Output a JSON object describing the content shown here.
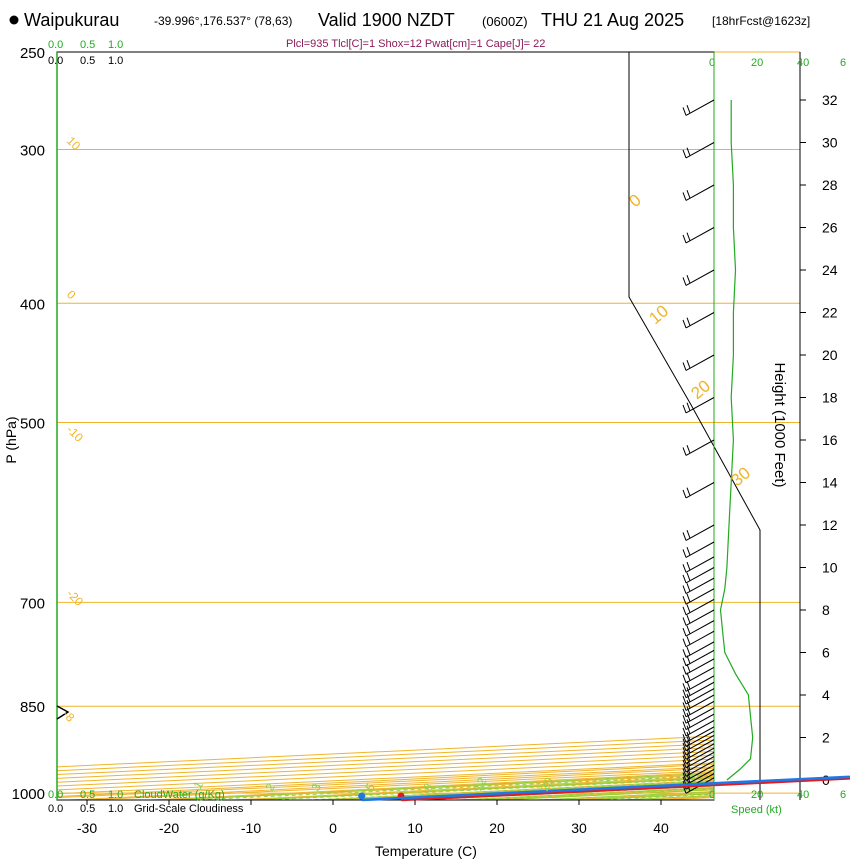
{
  "header": {
    "station": "Waipukurau",
    "coords": "-39.996°,176.537° (78,63)",
    "valid": "Valid 1900 NZDT",
    "utc": "(0600Z)",
    "date": "THU 21 Aug 2025",
    "forecast": "[18hrFcst@1623z]",
    "indices": "Plcl=935 Tlcl[C]=1 Shox=12 Pwat[cm]=1 Cape[J]= 22"
  },
  "colors": {
    "temp": "#e41a1c",
    "dew": "#1f77e8",
    "isotherm": "#f0b429",
    "adiabat": "#9acd32",
    "mixing": "#8fd14f",
    "green_label": "#22aa22",
    "parcel": "#8b1a5a"
  },
  "chart_data": {
    "type": "line",
    "title": "Skew-T log-P sounding",
    "xlabel": "Temperature (C)",
    "ylabel": "P (hPa)",
    "y2label": "Height (1000 Feet)",
    "x_ticks": [
      "-30",
      "-20",
      "-10",
      "0",
      "10",
      "20",
      "30",
      "40"
    ],
    "p_ticks": [
      "250",
      "300",
      "400",
      "500",
      "700",
      "850",
      "1000"
    ],
    "height_ticks": [
      "32",
      "30",
      "28",
      "26",
      "24",
      "22",
      "20",
      "18",
      "16",
      "14",
      "12",
      "10",
      "8",
      "6",
      "4",
      "2",
      "0"
    ],
    "isotherm_labels": [
      "10",
      "0",
      "-10",
      "-20",
      "-8",
      "0",
      "10",
      "20",
      "30"
    ],
    "mixing_labels": [
      "1",
      "2",
      "3",
      "5",
      "8",
      "12",
      "20"
    ],
    "cloud_water_ticks": [
      "0.0",
      "0.5",
      "1.0"
    ],
    "cloud_water_label": "CloudWater (g/Kg)",
    "cloudiness_ticks": [
      "0.0",
      "0.5",
      "1.0"
    ],
    "cloudiness_label": "Grid-Scale Cloudiness",
    "speed_ticks": [
      "0",
      "20",
      "40",
      "6"
    ],
    "speed_label": "Speed (kt)",
    "temperature": {
      "p": [
        1013,
        1000,
        950,
        900,
        870,
        860,
        850,
        835,
        820,
        800,
        780,
        750,
        700,
        650,
        600,
        550,
        500,
        450,
        400,
        350,
        300,
        270,
        255
      ],
      "t": [
        8.3,
        8.0,
        5.5,
        3.2,
        1.8,
        1.3,
        1.8,
        3.8,
        5.5,
        6.8,
        7.2,
        7.0,
        6.5,
        5.5,
        4.5,
        2.5,
        -1.0,
        -5.5,
        -9.0,
        -12.0,
        -17.0,
        -20.5,
        -23.5
      ]
    },
    "dewpoint": {
      "p": [
        1013,
        1000,
        950,
        900,
        870,
        860,
        850,
        800,
        780,
        760,
        700,
        650,
        600,
        550,
        500,
        450,
        420,
        400,
        350,
        320,
        300,
        270,
        255
      ],
      "t": [
        3.5,
        3.2,
        2.2,
        2.5,
        2.8,
        2.5,
        2.0,
        -19.0,
        -24.0,
        -25.5,
        -27.5,
        -30.0,
        -33.0,
        -35.0,
        -34.0,
        -34.0,
        -36.0,
        -39.0,
        -48.0,
        -52.0,
        -53.0,
        -55.5,
        -57.5
      ]
    },
    "parcel": {
      "p": [
        930,
        900,
        870,
        855
      ],
      "t": [
        2.6,
        3.0,
        3.3,
        3.5
      ]
    },
    "height_profile": [
      {
        "km": 0.0,
        "hft": 0
      },
      {
        "km": 0.9,
        "hft": 3
      },
      {
        "km": 1.6,
        "hft": 5
      },
      {
        "km": 2.4,
        "hft": 8
      },
      {
        "km": 3.3,
        "hft": 11
      },
      {
        "km": 4.0,
        "hft": 13
      },
      {
        "km": 5.5,
        "hft": 18
      },
      {
        "km": 7.2,
        "hft": 23.7
      }
    ],
    "wind_speed_profile": {
      "hft": [
        0,
        0.5,
        1,
        2,
        3,
        4,
        5,
        6,
        7,
        8,
        9,
        10,
        12,
        14,
        16,
        18,
        20,
        22,
        24,
        26,
        28,
        30,
        32
      ],
      "kt": [
        6,
        12,
        17,
        18,
        17,
        16,
        10,
        5,
        4,
        3,
        5,
        6,
        7,
        8,
        9,
        8,
        9,
        9,
        10,
        9,
        9,
        8,
        8
      ]
    },
    "wind_barbs_hft": [
      0.1,
      0.3,
      0.5,
      0.7,
      0.9,
      1.1,
      1.3,
      1.5,
      1.7,
      1.9,
      2.1,
      2.3,
      2.5,
      2.8,
      3.1,
      3.4,
      3.7,
      4.0,
      4.3,
      4.6,
      4.9,
      5.3,
      5.7,
      6.1,
      6.5,
      7.0,
      7.5,
      8.0,
      8.5,
      9.0,
      9.5,
      10.0,
      10.5,
      11.2,
      12.0,
      14.0,
      16.0,
      18.0,
      20.0,
      22.0,
      24.0,
      26.0,
      28.0,
      30.0,
      32.0
    ]
  }
}
